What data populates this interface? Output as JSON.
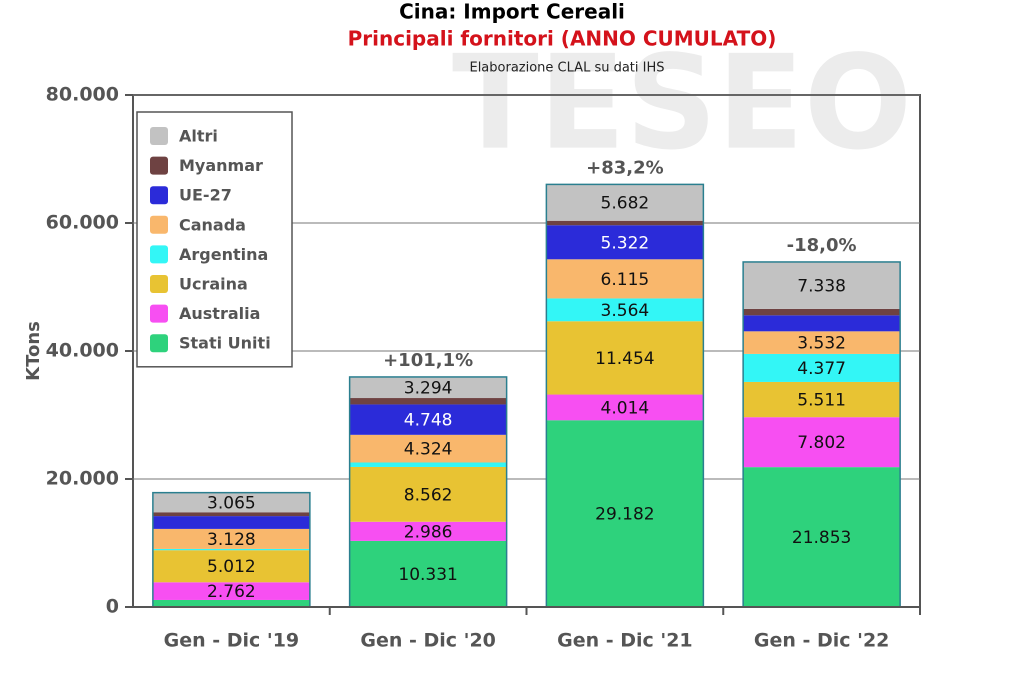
{
  "chart_data": {
    "type": "stacked_bar",
    "title": "Cina: Import Cereali",
    "subtitle": "Principali fornitori (ANNO CUMULATO)",
    "source": "Elaborazione CLAL su dati IHS",
    "watermark": "TESEO",
    "ylabel": "KTons",
    "categories": [
      "Gen - Dic '19",
      "Gen - Dic '20",
      "Gen - Dic '21",
      "Gen - Dic '22"
    ],
    "annotations": [
      null,
      "+101,1%",
      "+83,2%",
      "-18,0%"
    ],
    "ylim": [
      0,
      80000
    ],
    "yticks": [
      0,
      {
        "value": 20000,
        "label": "20.000"
      },
      {
        "value": 40000,
        "label": "40.000"
      },
      {
        "value": 60000,
        "label": "60.000"
      },
      {
        "value": 80000,
        "label": "80.000"
      }
    ],
    "grid": true,
    "legend": "upper left",
    "series": [
      {
        "name": "Stati Uniti",
        "color": "#2ed27c",
        "values": [
          1100,
          10331,
          29182,
          21853
        ],
        "value_labels": [
          null,
          "10.331",
          "29.182",
          "21.853"
        ]
      },
      {
        "name": "Australia",
        "color": "#f74ff2",
        "values": [
          2762,
          2986,
          4014,
          7802
        ],
        "value_labels": [
          "2.762",
          "2.986",
          "4.014",
          "7.802"
        ]
      },
      {
        "name": "Ucraina",
        "color": "#e8c333",
        "values": [
          5012,
          8562,
          11454,
          5511
        ],
        "value_labels": [
          "5.012",
          "8.562",
          "11.454",
          "5.511"
        ]
      },
      {
        "name": "Argentina",
        "color": "#33f6f6",
        "values": [
          200,
          700,
          3564,
          4377
        ],
        "value_labels": [
          null,
          null,
          "3.564",
          "4.377"
        ]
      },
      {
        "name": "Canada",
        "color": "#f9b76c",
        "values": [
          3128,
          4324,
          6115,
          3532
        ],
        "value_labels": [
          "3.128",
          "4.324",
          "6.115",
          "3.532"
        ]
      },
      {
        "name": "UE-27",
        "color": "#2b2bd9",
        "values": [
          2000,
          4748,
          5322,
          2500
        ],
        "value_labels": [
          null,
          "4.748",
          "5.322",
          null
        ]
      },
      {
        "name": "Myanmar",
        "color": "#6e4242",
        "values": [
          600,
          1000,
          700,
          1000
        ],
        "value_labels": [
          null,
          null,
          null,
          null
        ]
      },
      {
        "name": "Altri",
        "color": "#c2c2c2",
        "values": [
          3065,
          3294,
          5682,
          7338
        ],
        "value_labels": [
          "3.065",
          "3.294",
          "5.682",
          "7.338"
        ]
      }
    ]
  }
}
